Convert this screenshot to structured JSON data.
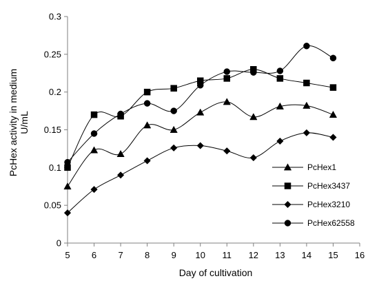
{
  "chart_data": {
    "type": "line",
    "title": "",
    "xlabel": "Day of cultivation",
    "ylabel": "PcHex activity in medium",
    "ylabel_unit": "U/mL",
    "xlim": [
      5,
      16
    ],
    "ylim": [
      0,
      0.3
    ],
    "x_ticks": [
      5,
      6,
      7,
      8,
      9,
      10,
      11,
      12,
      13,
      14,
      15,
      16
    ],
    "y_ticks": [
      0,
      0.05,
      0.1,
      0.15,
      0.2,
      0.25,
      0.3
    ],
    "y_tick_labels": [
      "0",
      "0.05",
      "0.1",
      "0.15",
      "0.2",
      "0.25",
      "0.3"
    ],
    "grid": false,
    "legend_position": "right",
    "line_color": "#000000",
    "x": [
      5,
      6,
      7,
      8,
      9,
      10,
      11,
      12,
      13,
      14,
      15
    ],
    "series": [
      {
        "name": "PcHex1",
        "marker": "triangle",
        "values": [
          0.075,
          0.123,
          0.118,
          0.156,
          0.15,
          0.173,
          0.187,
          0.167,
          0.181,
          0.182,
          0.17
        ]
      },
      {
        "name": "PcHex3437",
        "marker": "square",
        "values": [
          0.1,
          0.17,
          0.168,
          0.2,
          0.205,
          0.215,
          0.218,
          0.23,
          0.218,
          0.212,
          0.206
        ]
      },
      {
        "name": "PcHex3210",
        "marker": "diamond",
        "values": [
          0.04,
          0.071,
          0.09,
          0.109,
          0.126,
          0.129,
          0.122,
          0.113,
          0.135,
          0.146,
          0.14
        ]
      },
      {
        "name": "PcHex62558",
        "marker": "circle",
        "values": [
          0.107,
          0.145,
          0.171,
          0.185,
          0.175,
          0.209,
          0.227,
          0.226,
          0.228,
          0.261,
          0.245
        ]
      }
    ]
  }
}
